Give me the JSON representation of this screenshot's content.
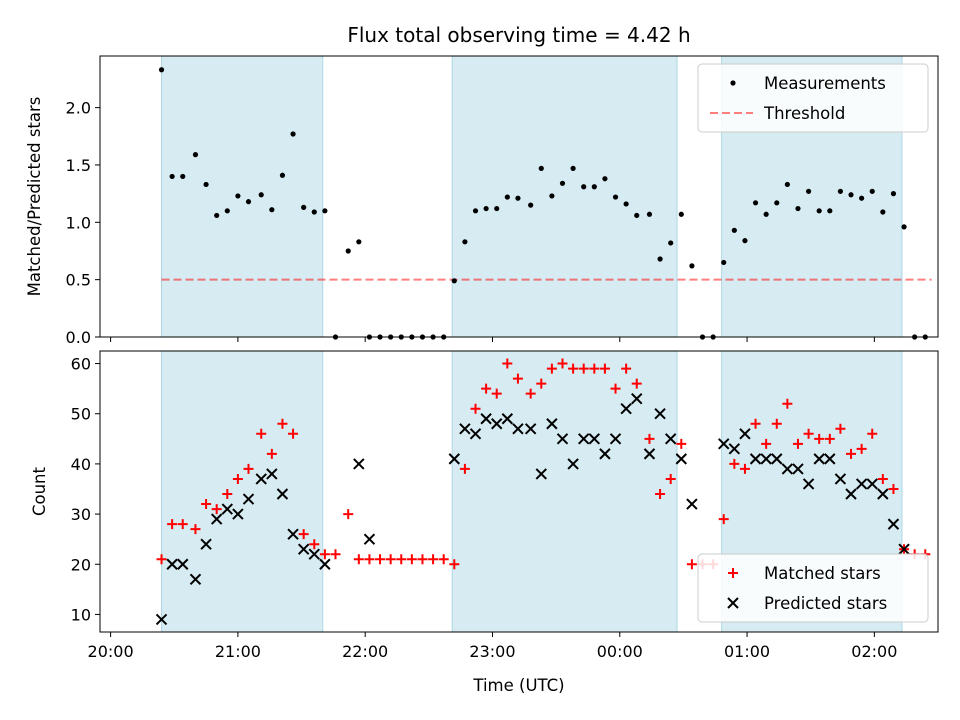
{
  "chart_data": {
    "title": "Flux total observing time = 4.42 h",
    "xlabel": "Time (UTC)",
    "x_ticks": [
      "20:00",
      "21:00",
      "22:00",
      "23:00",
      "00:00",
      "01:00",
      "02:00"
    ],
    "shaded_spans": [
      [
        "20:24",
        "21:40"
      ],
      [
        "22:41",
        "00:27"
      ],
      [
        "00:48",
        "02:13"
      ]
    ],
    "colors": {
      "shade": "#add8e6",
      "measurement": "#000000",
      "threshold": "#ff0000",
      "matched": "#ff0000",
      "predicted": "#000000"
    },
    "panels": [
      {
        "type": "scatter",
        "ylabel": "Matched/Predicted stars",
        "ylim": [
          0,
          2.45
        ],
        "y_ticks": [
          "0.0",
          "0.5",
          "1.0",
          "1.5",
          "2.0"
        ],
        "legend_position": "top-right",
        "threshold": {
          "name": "Threshold",
          "value": 0.5,
          "x_range": [
            "20:24",
            "02:27"
          ]
        },
        "series": [
          {
            "name": "Measurements",
            "x": [
              "20:24",
              "20:29",
              "20:34",
              "20:40",
              "20:45",
              "20:50",
              "20:55",
              "21:00",
              "21:05",
              "21:11",
              "21:16",
              "21:21",
              "21:26",
              "21:31",
              "21:36",
              "21:41",
              "21:46",
              "21:52",
              "21:57",
              "22:02",
              "22:07",
              "22:12",
              "22:17",
              "22:22",
              "22:27",
              "22:32",
              "22:37",
              "22:42",
              "22:47",
              "22:52",
              "22:57",
              "23:02",
              "23:07",
              "23:12",
              "23:18",
              "23:23",
              "23:28",
              "23:33",
              "23:38",
              "23:43",
              "23:48",
              "23:53",
              "23:58",
              "00:03",
              "00:08",
              "00:14",
              "00:19",
              "00:24",
              "00:29",
              "00:34",
              "00:39",
              "00:44",
              "00:49",
              "00:54",
              "00:59",
              "01:04",
              "01:09",
              "01:14",
              "01:19",
              "01:24",
              "01:29",
              "01:34",
              "01:39",
              "01:44",
              "01:49",
              "01:54",
              "01:59",
              "02:04",
              "02:09",
              "02:14",
              "02:19",
              "02:24"
            ],
            "y": [
              2.33,
              1.4,
              1.4,
              1.59,
              1.33,
              1.06,
              1.1,
              1.23,
              1.18,
              1.24,
              1.11,
              1.41,
              1.77,
              1.13,
              1.09,
              1.1,
              0,
              0.75,
              0.83,
              0,
              0,
              0,
              0,
              0,
              0,
              0,
              0,
              0.49,
              0.83,
              1.1,
              1.12,
              1.12,
              1.22,
              1.21,
              1.15,
              1.47,
              1.23,
              1.34,
              1.47,
              1.31,
              1.31,
              1.38,
              1.22,
              1.16,
              1.06,
              1.07,
              0.68,
              0.82,
              1.07,
              0.62,
              0,
              0,
              0.65,
              0.93,
              0.84,
              1.17,
              1.07,
              1.17,
              1.33,
              1.12,
              1.27,
              1.1,
              1.1,
              1.27,
              1.24,
              1.21,
              1.27,
              1.09,
              1.25,
              0.96,
              0,
              0
            ]
          }
        ]
      },
      {
        "type": "scatter",
        "ylabel": "Count",
        "ylim": [
          6.5,
          62.5
        ],
        "y_ticks": [
          "10",
          "20",
          "30",
          "40",
          "50",
          "60"
        ],
        "legend_position": "lower-right",
        "series": [
          {
            "name": "Matched stars",
            "marker": "+",
            "x": [
              "20:24",
              "20:29",
              "20:34",
              "20:40",
              "20:45",
              "20:50",
              "20:55",
              "21:00",
              "21:05",
              "21:11",
              "21:16",
              "21:21",
              "21:26",
              "21:31",
              "21:36",
              "21:41",
              "21:46",
              "21:52",
              "21:57",
              "22:02",
              "22:07",
              "22:12",
              "22:17",
              "22:22",
              "22:27",
              "22:32",
              "22:37",
              "22:42",
              "22:47",
              "22:52",
              "22:57",
              "23:02",
              "23:07",
              "23:12",
              "23:18",
              "23:23",
              "23:28",
              "23:33",
              "23:38",
              "23:43",
              "23:48",
              "23:53",
              "23:58",
              "00:03",
              "00:08",
              "00:14",
              "00:19",
              "00:24",
              "00:29",
              "00:34",
              "00:39",
              "00:44",
              "00:49",
              "00:54",
              "00:59",
              "01:04",
              "01:09",
              "01:14",
              "01:19",
              "01:24",
              "01:29",
              "01:34",
              "01:39",
              "01:44",
              "01:49",
              "01:54",
              "01:59",
              "02:04",
              "02:09",
              "02:14",
              "02:19",
              "02:24"
            ],
            "y": [
              21,
              28,
              28,
              27,
              32,
              31,
              34,
              37,
              39,
              46,
              42,
              48,
              46,
              26,
              24,
              22,
              22,
              30,
              21,
              21,
              21,
              21,
              21,
              21,
              21,
              21,
              21,
              20,
              39,
              51,
              55,
              54,
              60,
              57,
              54,
              56,
              59,
              60,
              59,
              59,
              59,
              59,
              55,
              59,
              56,
              45,
              34,
              37,
              44,
              20,
              20,
              20,
              29,
              40,
              39,
              48,
              44,
              48,
              52,
              44,
              46,
              45,
              45,
              47,
              42,
              43,
              46,
              37,
              35,
              23,
              22,
              22
            ]
          },
          {
            "name": "Predicted stars",
            "marker": "x",
            "x": [
              "20:24",
              "20:29",
              "20:34",
              "20:40",
              "20:45",
              "20:50",
              "20:55",
              "21:00",
              "21:05",
              "21:11",
              "21:16",
              "21:21",
              "21:26",
              "21:31",
              "21:36",
              "21:41",
              "21:57",
              "22:02",
              "22:42",
              "22:47",
              "22:52",
              "22:57",
              "23:02",
              "23:07",
              "23:12",
              "23:18",
              "23:23",
              "23:28",
              "23:33",
              "23:38",
              "23:43",
              "23:48",
              "23:53",
              "23:58",
              "00:03",
              "00:08",
              "00:14",
              "00:19",
              "00:24",
              "00:29",
              "00:34",
              "00:49",
              "00:54",
              "00:59",
              "01:04",
              "01:09",
              "01:14",
              "01:19",
              "01:24",
              "01:29",
              "01:34",
              "01:39",
              "01:44",
              "01:49",
              "01:54",
              "01:59",
              "02:04",
              "02:09",
              "02:14"
            ],
            "y": [
              9,
              20,
              20,
              17,
              24,
              29,
              31,
              30,
              33,
              37,
              38,
              34,
              26,
              23,
              22,
              20,
              40,
              25,
              41,
              47,
              46,
              49,
              48,
              49,
              47,
              47,
              38,
              48,
              45,
              40,
              45,
              45,
              42,
              45,
              51,
              53,
              42,
              50,
              45,
              41,
              32,
              44,
              43,
              46,
              41,
              41,
              41,
              39,
              39,
              36,
              41,
              41,
              37,
              34,
              36,
              36,
              34,
              28,
              23
            ]
          }
        ]
      }
    ]
  }
}
